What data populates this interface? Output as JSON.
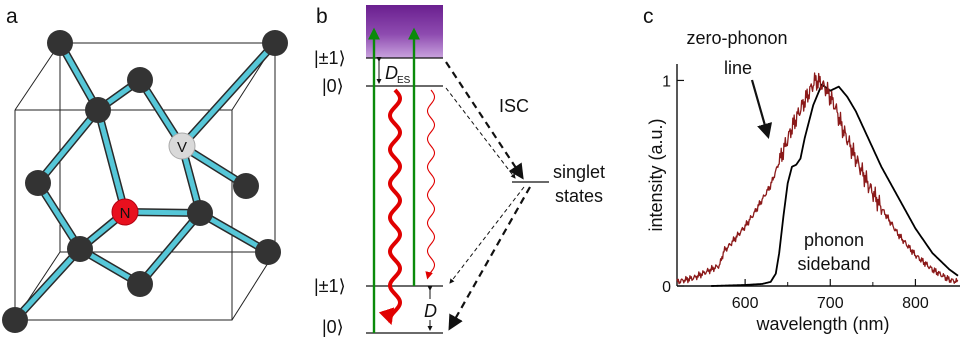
{
  "panels": {
    "a": {
      "label": "a",
      "atom_n": "N",
      "atom_v": "V",
      "colors": {
        "carbon": "#333333",
        "nitrogen": "#e8101e",
        "vacancy": "#d9d9d9",
        "bond": "#4fc3d6",
        "cube": "#222222"
      }
    },
    "b": {
      "label": "b",
      "ground_state_label": "|0⟩",
      "ground_state_pm_label": "|±1⟩",
      "excited_state_label": "|0⟩",
      "excited_state_pm_label": "|±1⟩",
      "d_es_symbol": "D",
      "d_es_subscript": "ES",
      "d_symbol": "D",
      "isc_label": "ISC",
      "singlet_line1": "singlet",
      "singlet_line2": "states",
      "colors": {
        "excitation": "#0a8a0a",
        "emission": "#e00000",
        "band_top": "#6a1f8f",
        "band_bottom": "#c7a0dc"
      }
    },
    "c": {
      "label": "c",
      "annotation_zpl_line1": "zero-phonon",
      "annotation_zpl_line2": "line",
      "annotation_psb_line1": "phonon",
      "annotation_psb_line2": "sideband"
    }
  },
  "chart_data": {
    "type": "line",
    "title": "",
    "xlabel": "wavelength (nm)",
    "ylabel": "intensity (a.u.)",
    "xlim": [
      520,
      850
    ],
    "ylim": [
      0,
      1.08
    ],
    "xticks": [
      600,
      700,
      800
    ],
    "yticks": [
      0,
      1
    ],
    "xtick_labels": [
      "600",
      "700",
      "800"
    ],
    "ytick_labels": [
      "0",
      "1"
    ],
    "series": [
      {
        "color": "#000000",
        "x": [
          560,
          600,
          620,
          630,
          636,
          640,
          645,
          650,
          655,
          660,
          665,
          670,
          680,
          690,
          700,
          710,
          720,
          730,
          740,
          750,
          760,
          780,
          800,
          820,
          840,
          850
        ],
        "y": [
          0.0,
          0.005,
          0.01,
          0.02,
          0.06,
          0.16,
          0.34,
          0.5,
          0.58,
          0.59,
          0.62,
          0.72,
          0.88,
          0.98,
          0.95,
          0.97,
          0.92,
          0.85,
          0.76,
          0.67,
          0.58,
          0.43,
          0.28,
          0.16,
          0.08,
          0.05
        ]
      },
      {
        "color": "#8b1a1a",
        "x": [
          520,
          540,
          560,
          570,
          575,
          580,
          590,
          600,
          610,
          620,
          630,
          637,
          645,
          655,
          665,
          675,
          682,
          688,
          695,
          705,
          715,
          730,
          745,
          760,
          780,
          800,
          820,
          840,
          850
        ],
        "y": [
          0.02,
          0.04,
          0.08,
          0.1,
          0.17,
          0.19,
          0.24,
          0.29,
          0.35,
          0.42,
          0.49,
          0.57,
          0.66,
          0.77,
          0.86,
          0.94,
          1.0,
          0.99,
          0.96,
          0.88,
          0.76,
          0.62,
          0.49,
          0.38,
          0.25,
          0.15,
          0.08,
          0.03,
          0.02
        ]
      }
    ]
  }
}
